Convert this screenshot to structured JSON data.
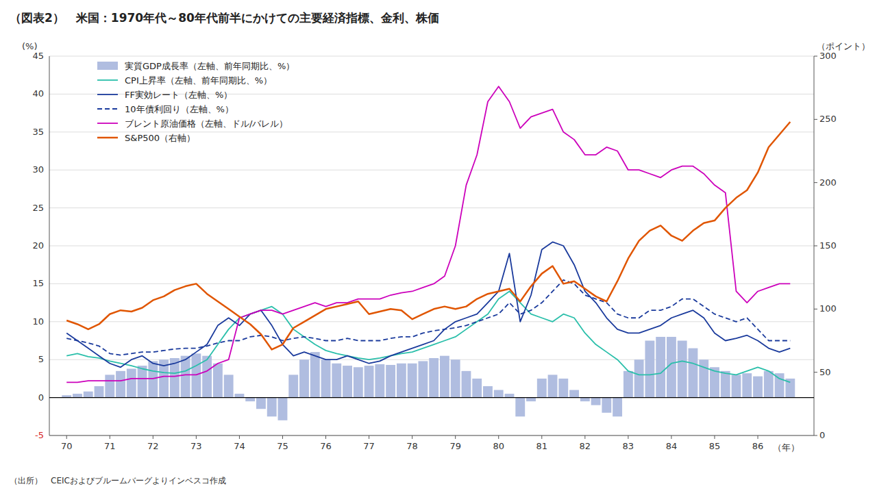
{
  "chart_data": {
    "type": "combo",
    "title": "（図表2）　米国：1970年代～80年代前半にかけての主要経済指標、金利、株価",
    "ylabel": "(%)",
    "y2label": "（ポイント）",
    "xlabel": "（年）",
    "annotations": [
      "（出所）　CEICおよびブルームバーグよりインベスコ作成"
    ],
    "xlim": [
      1969.6,
      1987.3
    ],
    "xticks": [
      {
        "value": 1970,
        "label": "70"
      },
      {
        "value": 1971,
        "label": "71"
      },
      {
        "value": 1972,
        "label": "72"
      },
      {
        "value": 1973,
        "label": "73"
      },
      {
        "value": 1974,
        "label": "74"
      },
      {
        "value": 1975,
        "label": "75"
      },
      {
        "value": 1976,
        "label": "76"
      },
      {
        "value": 1977,
        "label": "77"
      },
      {
        "value": 1978,
        "label": "78"
      },
      {
        "value": 1979,
        "label": "79"
      },
      {
        "value": 1980,
        "label": "80"
      },
      {
        "value": 1981,
        "label": "81"
      },
      {
        "value": 1982,
        "label": "82"
      },
      {
        "value": 1983,
        "label": "83"
      },
      {
        "value": 1984,
        "label": "84"
      },
      {
        "value": 1985,
        "label": "85"
      },
      {
        "value": 1986,
        "label": "86"
      }
    ],
    "ylim": [
      -5,
      45
    ],
    "yticks": [
      -5,
      0,
      5,
      10,
      15,
      20,
      25,
      30,
      35,
      40,
      45
    ],
    "y2lim": [
      0,
      300
    ],
    "y2ticks": [
      0,
      50,
      100,
      150,
      200,
      250,
      300
    ],
    "grid": true,
    "legend": "upper left",
    "x": [
      1970,
      1970.25,
      1970.5,
      1970.75,
      1971,
      1971.25,
      1971.5,
      1971.75,
      1972,
      1972.25,
      1972.5,
      1972.75,
      1973,
      1973.25,
      1973.5,
      1973.75,
      1974,
      1974.25,
      1974.5,
      1974.75,
      1975,
      1975.25,
      1975.5,
      1975.75,
      1976,
      1976.25,
      1976.5,
      1976.75,
      1977,
      1977.25,
      1977.5,
      1977.75,
      1978,
      1978.25,
      1978.5,
      1978.75,
      1979,
      1979.25,
      1979.5,
      1979.75,
      1980,
      1980.25,
      1980.5,
      1980.75,
      1981,
      1981.25,
      1981.5,
      1981.75,
      1982,
      1982.25,
      1982.5,
      1982.75,
      1983,
      1983.25,
      1983.5,
      1983.75,
      1984,
      1984.25,
      1984.5,
      1984.75,
      1985,
      1985.25,
      1985.5,
      1985.75,
      1986,
      1986.25,
      1986.5,
      1986.75
    ],
    "series": [
      {
        "name": "実質GDP成長率（左軸、前年同期比、%）",
        "type": "bar",
        "color": "#b0bde0",
        "values": [
          0.3,
          0.5,
          0.8,
          1.5,
          3.0,
          3.5,
          3.8,
          4.2,
          4.8,
          5.0,
          5.2,
          5.5,
          5.8,
          5.5,
          4.5,
          3.0,
          0.5,
          -0.5,
          -1.5,
          -2.5,
          -3.0,
          3.0,
          5.0,
          6.0,
          5.0,
          4.5,
          4.2,
          4.0,
          4.2,
          4.4,
          4.3,
          4.5,
          4.5,
          4.8,
          5.2,
          5.5,
          5.0,
          3.5,
          2.5,
          1.5,
          1.0,
          0.5,
          -2.5,
          -0.5,
          2.5,
          3.0,
          2.5,
          1.0,
          -0.5,
          -1.0,
          -2.0,
          -2.5,
          3.5,
          5.0,
          7.5,
          8.0,
          8.0,
          7.5,
          6.5,
          5.0,
          4.0,
          3.5,
          3.0,
          3.2,
          2.8,
          3.5,
          3.2,
          2.5
        ]
      },
      {
        "name": "CPI上昇率（左軸、前年同期比、%）",
        "type": "line",
        "color": "#2abfaa",
        "values": [
          5.5,
          5.8,
          5.4,
          5.2,
          4.8,
          4.5,
          4.2,
          3.8,
          3.5,
          3.3,
          3.2,
          3.5,
          4.2,
          5.0,
          7.0,
          9.0,
          10.5,
          11.0,
          11.5,
          12.0,
          11.0,
          9.0,
          8.0,
          7.0,
          6.2,
          5.8,
          5.5,
          5.2,
          5.0,
          5.2,
          5.5,
          5.8,
          6.0,
          6.5,
          7.0,
          7.5,
          8.0,
          9.0,
          10.0,
          11.0,
          13.0,
          14.0,
          12.5,
          11.0,
          10.5,
          10.0,
          11.0,
          10.5,
          8.5,
          7.0,
          6.0,
          5.0,
          3.5,
          3.0,
          3.0,
          3.2,
          4.5,
          4.8,
          4.5,
          4.0,
          3.5,
          3.2,
          3.0,
          3.5,
          4.0,
          3.5,
          2.5,
          2.0
        ]
      },
      {
        "name": "FF実効レート（左軸、%）",
        "type": "line",
        "color": "#1a3a9c",
        "values": [
          8.5,
          7.5,
          6.5,
          5.5,
          4.5,
          4.0,
          5.0,
          5.5,
          4.5,
          4.2,
          4.5,
          5.0,
          6.0,
          7.0,
          9.5,
          10.5,
          9.5,
          11.0,
          11.5,
          9.5,
          7.0,
          5.5,
          6.0,
          5.5,
          5.0,
          5.0,
          5.5,
          5.0,
          4.5,
          4.8,
          5.5,
          6.0,
          6.5,
          7.0,
          7.5,
          9.0,
          10.0,
          10.5,
          11.0,
          12.5,
          14.0,
          19.0,
          10.0,
          13.5,
          19.5,
          20.5,
          20.0,
          17.5,
          14.0,
          12.5,
          10.5,
          9.0,
          8.5,
          8.5,
          9.0,
          9.5,
          10.5,
          11.0,
          11.5,
          10.5,
          8.5,
          7.5,
          7.8,
          8.2,
          7.5,
          6.5,
          6.0,
          6.5
        ]
      },
      {
        "name": "10年債利回り（左軸、%）",
        "type": "line",
        "color": "#1a3a9c",
        "line_style": "dashed",
        "values": [
          7.8,
          7.5,
          7.2,
          6.8,
          5.8,
          5.6,
          5.8,
          6.0,
          6.0,
          6.2,
          6.4,
          6.5,
          6.5,
          6.8,
          7.2,
          7.5,
          7.5,
          8.0,
          8.2,
          8.0,
          7.5,
          7.8,
          8.0,
          7.8,
          7.5,
          7.5,
          7.8,
          7.5,
          7.5,
          7.5,
          7.8,
          8.0,
          8.0,
          8.5,
          8.8,
          9.0,
          9.2,
          9.5,
          10.0,
          10.5,
          11.0,
          12.5,
          11.0,
          11.5,
          12.5,
          14.0,
          15.5,
          15.0,
          13.5,
          13.0,
          12.5,
          11.0,
          10.5,
          10.5,
          11.5,
          11.5,
          12.0,
          13.0,
          13.0,
          12.0,
          11.0,
          10.5,
          10.0,
          10.5,
          9.0,
          7.5,
          7.5,
          7.5
        ]
      },
      {
        "name": "ブレント原油価格（左軸、ドル/バレル）",
        "type": "line",
        "color": "#cc00bb",
        "values": [
          2.0,
          2.0,
          2.2,
          2.2,
          2.2,
          2.2,
          2.5,
          2.5,
          2.5,
          2.8,
          2.8,
          3.0,
          3.0,
          3.5,
          4.5,
          5.0,
          10.5,
          11.0,
          11.5,
          11.5,
          11.0,
          11.5,
          12.0,
          12.5,
          12.0,
          12.5,
          12.5,
          13.0,
          13.0,
          13.0,
          13.5,
          13.8,
          14.0,
          14.5,
          15.0,
          16.0,
          20.0,
          28.0,
          32.0,
          39.0,
          41.0,
          39.0,
          35.5,
          37.0,
          37.5,
          38.0,
          35.0,
          34.0,
          32.0,
          32.0,
          33.0,
          32.5,
          30.0,
          30.0,
          29.5,
          29.0,
          30.0,
          30.5,
          30.5,
          29.5,
          28.0,
          27.0,
          14.0,
          12.5,
          14.0,
          14.5,
          15.0,
          15.0
        ]
      },
      {
        "name": "S&P500（右軸）",
        "type": "line",
        "color": "#e05500",
        "axis": "y2",
        "values": [
          91,
          88,
          84,
          88,
          96,
          99,
          98,
          101,
          107,
          110,
          115,
          118,
          120,
          112,
          106,
          100,
          94,
          88,
          80,
          68,
          72,
          85,
          90,
          95,
          100,
          102,
          104,
          106,
          96,
          98,
          100,
          99,
          92,
          96,
          100,
          102,
          100,
          102,
          108,
          112,
          114,
          116,
          106,
          118,
          128,
          134,
          120,
          122,
          116,
          110,
          106,
          122,
          140,
          154,
          162,
          166,
          158,
          154,
          162,
          168,
          170,
          180,
          188,
          194,
          208,
          228,
          238,
          248
        ]
      }
    ]
  }
}
